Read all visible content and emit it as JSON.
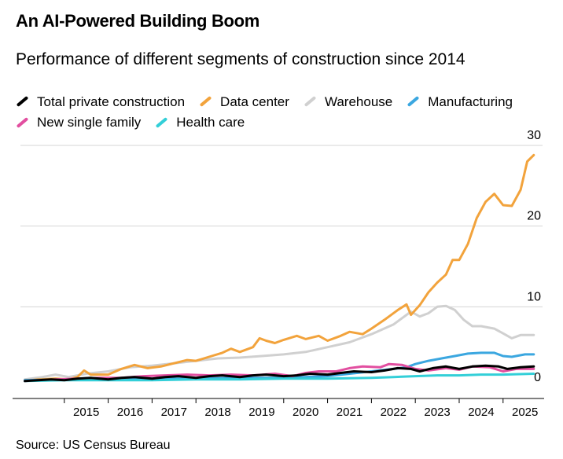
{
  "header": {
    "title": "An AI-Powered Building Boom",
    "subtitle": "Performance of different segments of construction since 2014"
  },
  "source": "Source: US Census Bureau",
  "chart_data": {
    "type": "line",
    "title": "An AI-Powered Building Boom",
    "subtitle": "Performance of different segments of construction since 2014",
    "xlabel": "",
    "ylabel": "",
    "xlim": [
      2014.0,
      2025.9
    ],
    "ylim": [
      0,
      30
    ],
    "yticks": [
      0,
      10,
      20,
      30
    ],
    "yticks_labels": [
      "0",
      "10",
      "20",
      "30"
    ],
    "xticks": [
      2015,
      2016,
      2017,
      2018,
      2019,
      2020,
      2021,
      2022,
      2023,
      2024,
      2025
    ],
    "xticks_labels": [
      "2015",
      "2016",
      "2017",
      "2018",
      "2019",
      "2020",
      "2021",
      "2022",
      "2023",
      "2024",
      "2025"
    ],
    "grid": true,
    "legend_position": "top-left",
    "series": [
      {
        "name": "Warehouse",
        "color": "#d0d0d0",
        "x": [
          2014.1,
          2014.5,
          2014.8,
          2015.1,
          2015.5,
          2016.0,
          2016.5,
          2017.0,
          2017.5,
          2018.0,
          2018.5,
          2019.0,
          2019.5,
          2020.0,
          2020.5,
          2021.0,
          2021.5,
          2022.0,
          2022.5,
          2022.9,
          2023.1,
          2023.3,
          2023.5,
          2023.7,
          2023.9,
          2024.1,
          2024.3,
          2024.5,
          2024.8,
          2025.0,
          2025.2,
          2025.4,
          2025.7
        ],
        "y": [
          1.0,
          1.3,
          1.6,
          1.3,
          1.7,
          2.0,
          2.5,
          2.7,
          3.0,
          3.3,
          3.6,
          3.7,
          3.9,
          4.1,
          4.4,
          5.0,
          5.6,
          6.6,
          7.8,
          9.4,
          8.8,
          9.2,
          10.0,
          10.1,
          9.6,
          8.4,
          7.6,
          7.6,
          7.3,
          6.7,
          6.1,
          6.5,
          6.5
        ]
      },
      {
        "name": "Data center",
        "color": "#f2a33c",
        "x": [
          2014.1,
          2014.4,
          2014.8,
          2015.1,
          2015.3,
          2015.45,
          2015.6,
          2016.0,
          2016.3,
          2016.6,
          2016.9,
          2017.2,
          2017.5,
          2017.8,
          2018.0,
          2018.3,
          2018.6,
          2018.8,
          2019.0,
          2019.3,
          2019.45,
          2019.6,
          2019.8,
          2020.0,
          2020.3,
          2020.5,
          2020.8,
          2021.0,
          2021.3,
          2021.5,
          2021.8,
          2022.0,
          2022.3,
          2022.6,
          2022.8,
          2022.9,
          2023.1,
          2023.3,
          2023.5,
          2023.7,
          2023.85,
          2024.0,
          2024.2,
          2024.4,
          2024.6,
          2024.8,
          2025.0,
          2025.2,
          2025.4,
          2025.55,
          2025.7
        ],
        "y": [
          0.8,
          1.0,
          1.1,
          1.0,
          1.3,
          2.1,
          1.6,
          1.6,
          2.3,
          2.8,
          2.4,
          2.6,
          3.0,
          3.4,
          3.3,
          3.8,
          4.3,
          4.8,
          4.4,
          5.0,
          6.1,
          5.8,
          5.5,
          5.9,
          6.4,
          6.0,
          6.4,
          5.8,
          6.4,
          6.9,
          6.6,
          7.3,
          8.4,
          9.6,
          10.3,
          9.0,
          10.2,
          11.8,
          13.0,
          14.0,
          15.8,
          15.8,
          17.8,
          21.0,
          23.0,
          24.0,
          22.6,
          22.5,
          24.5,
          28.0,
          28.8
        ]
      },
      {
        "name": "Manufacturing",
        "color": "#3ba7e0",
        "x": [
          2014.1,
          2015.0,
          2016.0,
          2017.0,
          2018.0,
          2019.0,
          2020.0,
          2021.0,
          2021.5,
          2022.0,
          2022.5,
          2022.8,
          2023.0,
          2023.3,
          2023.6,
          2023.9,
          2024.2,
          2024.5,
          2024.8,
          2025.0,
          2025.2,
          2025.5,
          2025.7
        ],
        "y": [
          0.9,
          1.0,
          1.1,
          1.1,
          1.1,
          1.2,
          1.2,
          1.4,
          1.7,
          2.0,
          2.3,
          2.5,
          2.9,
          3.3,
          3.6,
          3.9,
          4.2,
          4.3,
          4.3,
          3.9,
          3.8,
          4.1,
          4.1
        ]
      },
      {
        "name": "New single family",
        "color": "#e24fa0",
        "x": [
          2014.1,
          2014.8,
          2015.3,
          2015.8,
          2016.3,
          2016.8,
          2017.3,
          2017.8,
          2018.3,
          2018.8,
          2019.3,
          2019.8,
          2020.2,
          2020.5,
          2020.8,
          2021.2,
          2021.5,
          2021.8,
          2022.2,
          2022.4,
          2022.7,
          2023.0,
          2023.3,
          2023.7,
          2024.0,
          2024.3,
          2024.7,
          2025.0,
          2025.3,
          2025.7
        ],
        "y": [
          0.8,
          1.0,
          1.1,
          1.2,
          1.2,
          1.4,
          1.5,
          1.6,
          1.5,
          1.6,
          1.5,
          1.7,
          1.4,
          1.8,
          2.0,
          2.0,
          2.4,
          2.6,
          2.5,
          2.9,
          2.8,
          2.3,
          2.1,
          2.4,
          2.2,
          2.6,
          2.5,
          2.0,
          2.3,
          2.3
        ]
      },
      {
        "name": "Health care",
        "color": "#33cfd8",
        "x": [
          2014.1,
          2015.0,
          2016.0,
          2017.0,
          2018.0,
          2019.0,
          2020.0,
          2021.0,
          2022.0,
          2022.5,
          2023.0,
          2023.5,
          2024.0,
          2024.5,
          2025.0,
          2025.7
        ],
        "y": [
          0.8,
          0.9,
          0.9,
          0.9,
          1.0,
          1.0,
          1.1,
          1.1,
          1.2,
          1.3,
          1.4,
          1.5,
          1.5,
          1.6,
          1.6,
          1.7
        ]
      },
      {
        "name": "Total private construction",
        "color": "#000000",
        "x": [
          2014.1,
          2014.4,
          2014.7,
          2015.0,
          2015.3,
          2015.6,
          2016.0,
          2016.3,
          2016.6,
          2017.0,
          2017.3,
          2017.6,
          2018.0,
          2018.3,
          2018.6,
          2019.0,
          2019.3,
          2019.6,
          2020.0,
          2020.3,
          2020.6,
          2021.0,
          2021.3,
          2021.6,
          2022.0,
          2022.3,
          2022.6,
          2022.9,
          2023.1,
          2023.4,
          2023.7,
          2024.0,
          2024.3,
          2024.6,
          2024.9,
          2025.1,
          2025.4,
          2025.7
        ],
        "y": [
          0.8,
          0.9,
          1.0,
          0.9,
          1.1,
          1.2,
          1.0,
          1.2,
          1.3,
          1.1,
          1.3,
          1.4,
          1.2,
          1.4,
          1.5,
          1.3,
          1.5,
          1.6,
          1.4,
          1.5,
          1.7,
          1.6,
          1.8,
          2.0,
          1.9,
          2.1,
          2.4,
          2.3,
          2.0,
          2.4,
          2.6,
          2.3,
          2.6,
          2.7,
          2.6,
          2.3,
          2.5,
          2.6
        ]
      }
    ],
    "legend": [
      "Total private construction",
      "Data center",
      "Warehouse",
      "Manufacturing",
      "New single family",
      "Health care"
    ]
  }
}
